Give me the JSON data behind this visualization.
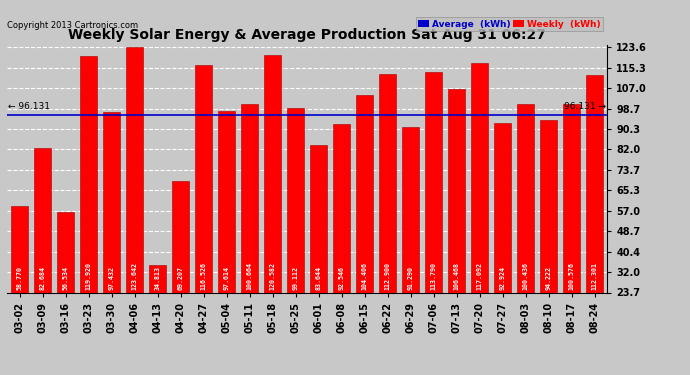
{
  "title": "Weekly Solar Energy & Average Production Sat Aug 31 06:27",
  "copyright": "Copyright 2013 Cartronics.com",
  "categories": [
    "03-02",
    "03-09",
    "03-16",
    "03-23",
    "03-30",
    "04-06",
    "04-13",
    "04-20",
    "04-27",
    "05-04",
    "05-11",
    "05-18",
    "05-25",
    "06-01",
    "06-08",
    "06-15",
    "06-22",
    "06-29",
    "07-06",
    "07-13",
    "07-20",
    "07-27",
    "08-03",
    "08-10",
    "08-17",
    "08-24"
  ],
  "values": [
    58.77,
    82.684,
    56.534,
    119.92,
    97.432,
    123.642,
    34.813,
    69.207,
    116.526,
    97.614,
    100.664,
    120.582,
    99.112,
    83.644,
    92.546,
    104.406,
    112.9,
    91.29,
    113.79,
    106.468,
    117.092,
    92.924,
    100.436,
    94.222,
    100.576,
    112.301
  ],
  "average": 96.131,
  "bar_color": "#ff0000",
  "average_line_color": "#0000cc",
  "background_color": "#c8c8c8",
  "plot_bg_color": "#c8c8c8",
  "ylim": [
    23.7,
    123.6
  ],
  "yticks": [
    23.7,
    32.0,
    40.4,
    48.7,
    57.0,
    65.3,
    73.7,
    82.0,
    90.3,
    98.7,
    107.0,
    115.3,
    123.6
  ],
  "legend_avg_color": "#0000cc",
  "legend_weekly_color": "#ff0000",
  "legend_avg_text": "Average  (kWh)",
  "legend_weekly_text": "Weekly  (kWh)",
  "avg_label": "96.131",
  "grid_color": "#ffffff",
  "bar_edge_color": "#aa0000",
  "title_fontsize": 10,
  "copyright_fontsize": 6,
  "tick_label_fontsize": 7,
  "bar_label_fontsize": 4.8,
  "avg_label_fontsize": 6.5
}
